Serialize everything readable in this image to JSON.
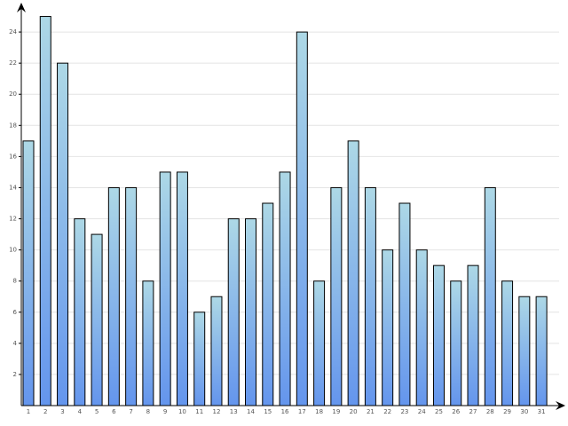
{
  "chart_data": {
    "type": "bar",
    "categories": [
      "1",
      "2",
      "3",
      "4",
      "5",
      "6",
      "7",
      "8",
      "9",
      "10",
      "11",
      "12",
      "13",
      "14",
      "15",
      "16",
      "17",
      "18",
      "19",
      "20",
      "21",
      "22",
      "23",
      "24",
      "25",
      "26",
      "27",
      "28",
      "29",
      "30",
      "31"
    ],
    "values": [
      17,
      25,
      22,
      12,
      11,
      14,
      14,
      8,
      15,
      15,
      6,
      7,
      12,
      12,
      13,
      15,
      24,
      8,
      14,
      17,
      14,
      10,
      13,
      10,
      9,
      8,
      9,
      14,
      8,
      7,
      7
    ],
    "color": [
      "#add8e6",
      "#6495ed"
    ],
    "ylim": [
      0,
      26
    ],
    "yticks": [
      2,
      4,
      6,
      8,
      10,
      12,
      14,
      16,
      18,
      20,
      22,
      24
    ],
    "grid": true
  }
}
